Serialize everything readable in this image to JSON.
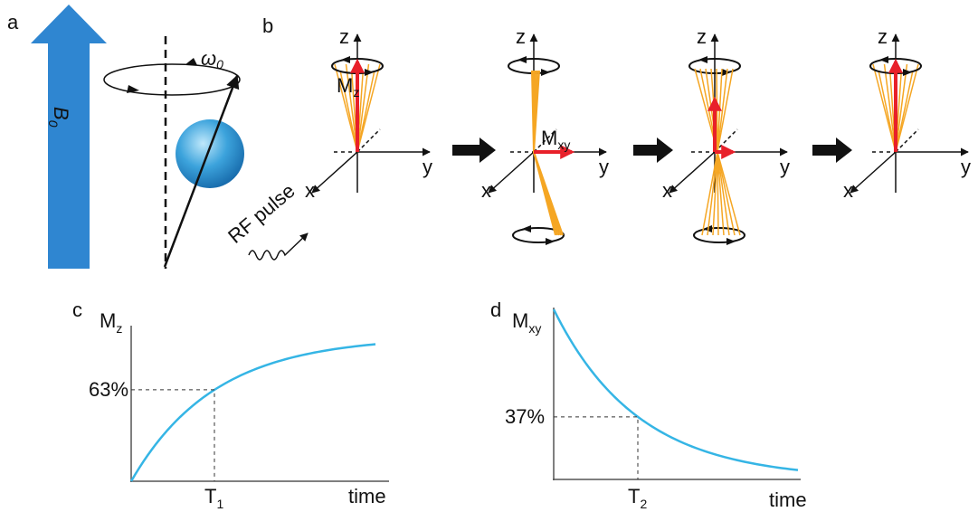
{
  "panel_labels": [
    "a",
    "b",
    "c",
    "d"
  ],
  "panel_a": {
    "field": {
      "base": "B",
      "sub": "0"
    },
    "precession": {
      "base": "ω",
      "sub": "0"
    }
  },
  "panel_b": {
    "frames": [
      {
        "z": "z",
        "y": "y",
        "x": "x"
      },
      {
        "z": "z",
        "y": "y",
        "x": "x"
      },
      {
        "z": "z",
        "y": "y",
        "x": "x"
      },
      {
        "z": "z",
        "y": "y",
        "x": "x"
      }
    ],
    "longitudinal": {
      "base": "M",
      "sub": "z"
    },
    "transverse": {
      "base": "M",
      "sub": "xy"
    },
    "rf_pulse": "RF pulse"
  },
  "panel_c": {
    "y_label": {
      "base": "M",
      "sub": "z"
    },
    "level": "63%",
    "time_constant": {
      "base": "T",
      "sub": "1"
    },
    "x_label": "time"
  },
  "panel_d": {
    "y_label": {
      "base": "M",
      "sub": "xy"
    },
    "level": "37%",
    "time_constant": {
      "base": "T",
      "sub": "2"
    },
    "x_label": "time"
  }
}
